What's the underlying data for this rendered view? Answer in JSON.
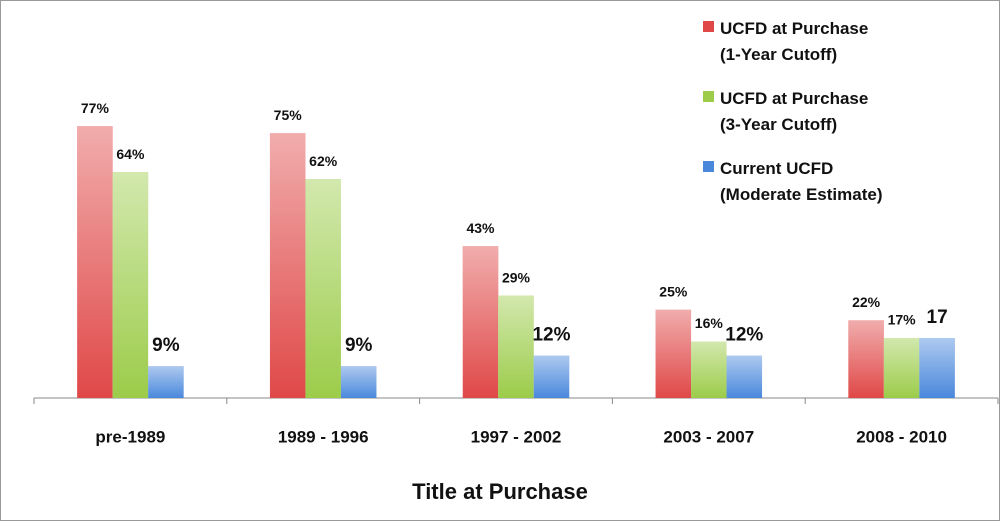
{
  "chart_data": {
    "type": "bar",
    "x_label": "Title at Purchase",
    "categories": [
      "pre-1989",
      "1989 - 1996",
      "1997 - 2002",
      "2003 - 2007",
      "2008 - 2010"
    ],
    "series": [
      {
        "name": "UCFD at Purchase\n(1-Year Cutoff)",
        "color": "#e04848",
        "values": [
          77,
          75,
          43,
          25,
          22
        ],
        "value_labels": [
          "77%",
          "75%",
          "43%",
          "25%",
          "22%"
        ]
      },
      {
        "name": "UCFD at Purchase\n(3-Year Cutoff)",
        "color": "#9ccc4a",
        "values": [
          64,
          62,
          29,
          16,
          17
        ],
        "value_labels": [
          "64%",
          "62%",
          "29%",
          "16%",
          "17%"
        ]
      },
      {
        "name": "Current UCFD\n(Moderate Estimate)",
        "color": "#4a88dc",
        "values": [
          9,
          9,
          12,
          12,
          17
        ],
        "value_labels": [
          "9%",
          "9%",
          "12%",
          "12%",
          null
        ]
      }
    ],
    "legend": "top-right"
  }
}
